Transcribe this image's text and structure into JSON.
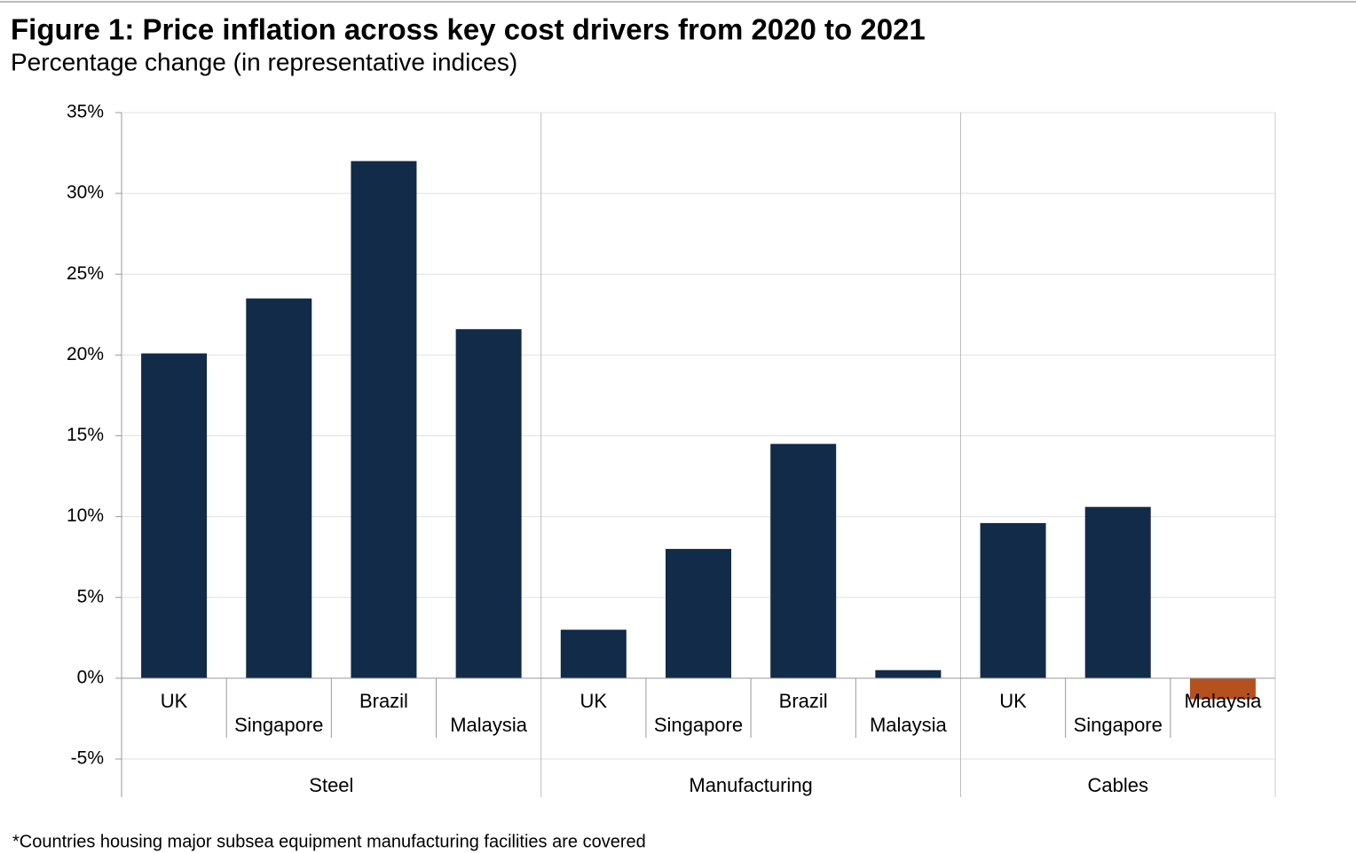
{
  "chart_data": {
    "type": "bar",
    "title": "Figure 1: Price inflation across key cost drivers from 2020 to 2021",
    "subtitle": "Percentage change (in representative indices)",
    "footnote": "*Countries housing major subsea equipment manufacturing facilities are covered",
    "groups": [
      {
        "name": "Steel",
        "categories": [
          "UK",
          "Singapore",
          "Brazil",
          "Malaysia"
        ],
        "values": [
          20.1,
          23.5,
          32.0,
          21.6
        ]
      },
      {
        "name": "Manufacturing",
        "categories": [
          "UK",
          "Singapore",
          "Brazil",
          "Malaysia"
        ],
        "values": [
          3.0,
          8.0,
          14.5,
          0.5
        ]
      },
      {
        "name": "Cables",
        "categories": [
          "UK",
          "Singapore",
          "Malaysia"
        ],
        "values": [
          9.6,
          10.6,
          -1.3
        ]
      }
    ],
    "color": "#112b48",
    "negative_color": "#b5501f",
    "ylim": [
      -5,
      35
    ],
    "yticks": [
      {
        "value": -5,
        "label": "-5%"
      },
      {
        "value": 0,
        "label": "0%"
      },
      {
        "value": 5,
        "label": "5%"
      },
      {
        "value": 10,
        "label": "10%"
      },
      {
        "value": 15,
        "label": "15%"
      },
      {
        "value": 20,
        "label": "20%"
      },
      {
        "value": 25,
        "label": "25%"
      },
      {
        "value": 30,
        "label": "30%"
      },
      {
        "value": 35,
        "label": "35%"
      }
    ],
    "grid": true
  }
}
